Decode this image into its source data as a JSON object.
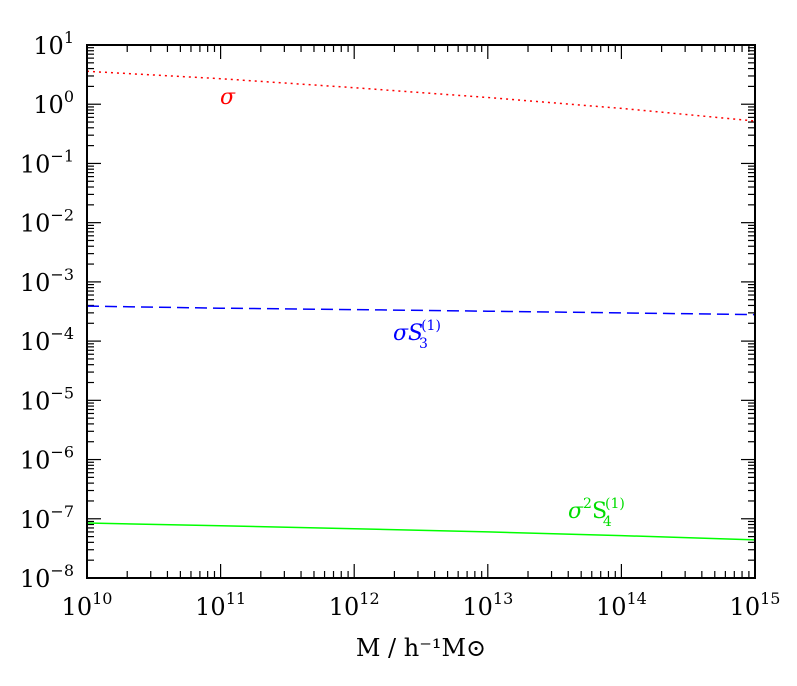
{
  "chart_data": {
    "type": "line",
    "scale": {
      "x": "log",
      "y": "log"
    },
    "xlabel": "M / h⁻¹M⊙",
    "ylabel": "",
    "xlim": [
      10000000000.0,
      1000000000000000.0
    ],
    "ylim": [
      1e-08,
      10
    ],
    "x_tick_labels": [
      {
        "base": "10",
        "exp": "10"
      },
      {
        "base": "10",
        "exp": "11"
      },
      {
        "base": "10",
        "exp": "12"
      },
      {
        "base": "10",
        "exp": "13"
      },
      {
        "base": "10",
        "exp": "14"
      },
      {
        "base": "10",
        "exp": "15"
      }
    ],
    "y_tick_labels": [
      {
        "base": "10",
        "exp": "1"
      },
      {
        "base": "10",
        "exp": "0"
      },
      {
        "base": "10",
        "exp": "−1"
      },
      {
        "base": "10",
        "exp": "−2"
      },
      {
        "base": "10",
        "exp": "−3"
      },
      {
        "base": "10",
        "exp": "−4"
      },
      {
        "base": "10",
        "exp": "−5"
      },
      {
        "base": "10",
        "exp": "−6"
      },
      {
        "base": "10",
        "exp": "−7"
      },
      {
        "base": "10",
        "exp": "−8"
      }
    ],
    "x": [
      10000000000.0,
      100000000000.0,
      1000000000000.0,
      10000000000000.0,
      100000000000000.0,
      1000000000000000.0
    ],
    "series": [
      {
        "label_parts": [
          "σ"
        ],
        "color": "#ff0000",
        "style": "dotted",
        "y": [
          3.6,
          2.7,
          1.9,
          1.3,
          0.85,
          0.52
        ]
      },
      {
        "label_parts": [
          "σS",
          "(1)",
          "3"
        ],
        "color": "#0000ff",
        "style": "dashed",
        "y": [
          0.00039,
          0.00036,
          0.00034,
          0.00032,
          0.0003,
          0.00028
        ]
      },
      {
        "label_parts": [
          "σ",
          "2",
          "S",
          "(1)",
          "4"
        ],
        "color": "#00ff00",
        "style": "solid",
        "y": [
          8.5e-08,
          7.6e-08,
          6.8e-08,
          6e-08,
          5.2e-08,
          4.4e-08
        ]
      }
    ],
    "grid": false,
    "legend": "none"
  }
}
